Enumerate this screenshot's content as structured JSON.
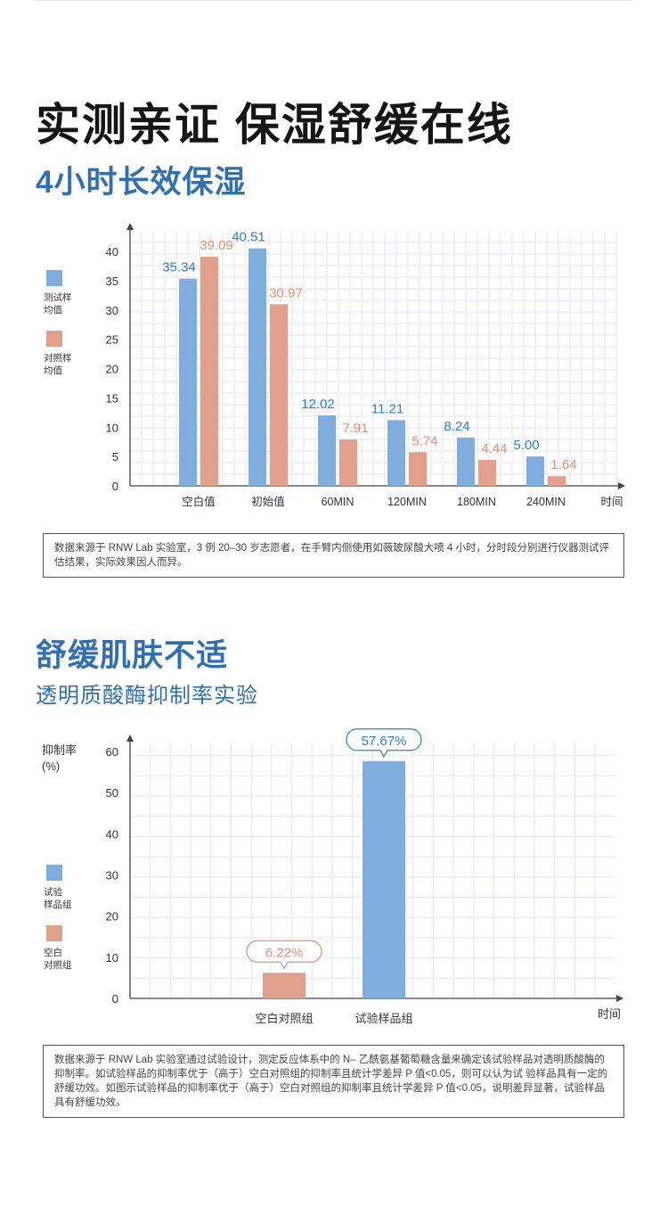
{
  "headline": "实测亲证 保湿舒缓在线",
  "section1": {
    "title": "4小时长效保湿",
    "note": "数据来源于 RNW Lab 实验室，3 例 20–30 岁志愿者，在手臂内侧使用如薇玻尿酸大喷 4 小时，分时段分别进行仪器测试评估结果，实际效果因人而异。"
  },
  "section2": {
    "title": "舒缓肌肤不适",
    "subtitle": "透明质酸酶抑制率实验",
    "note": "数据来源于 RNW Lab 实验室通过试验设计，测定反应体系中的 N– 乙酰氨基葡萄糖含量来确定该试验样品对透明质酸酶的抑制率。如试验样品的抑制率优于（高于）空白对照组的抑制率且统计学差异 P 值<0.05，则可以认为试 验样品具有一定的舒缓功效。如图示试验样品的抑制率优于（高于）空白对照组的抑制率且统计学差异 P 值<0.05，说明差异显著，试验样品具有舒缓功效。"
  },
  "colors": {
    "blue": "#7fadde",
    "salmon": "#e0a08c",
    "blue_text": "#2d7fd0",
    "salmon_text": "#e0927a",
    "grid": "#e3e6eb",
    "axis": "#444444"
  },
  "chart_data": [
    {
      "type": "bar",
      "categories": [
        "空白值",
        "初始值",
        "60MIN",
        "120MIN",
        "180MIN",
        "240MIN"
      ],
      "series": [
        {
          "name": "测试样\n均值",
          "values": [
            35.34,
            40.51,
            12.02,
            11.21,
            8.24,
            5.0
          ],
          "labels": [
            "35.34",
            "40.51",
            "12.02",
            "11.21",
            "8.24",
            "5.00"
          ],
          "color": "#7fadde"
        },
        {
          "name": "对照样\n均值",
          "values": [
            39.09,
            30.97,
            7.91,
            5.74,
            4.44,
            1.64
          ],
          "labels": [
            "39.09",
            "30.97",
            "7.91",
            "5.74",
            "4.44",
            "1.64"
          ],
          "color": "#e0a08c"
        }
      ],
      "yticks": [
        0,
        5,
        10,
        15,
        20,
        25,
        30,
        35,
        40
      ],
      "ylim": [
        0,
        45
      ],
      "xlabel": "时间",
      "ylabel": "",
      "grid": true,
      "legend": "left"
    },
    {
      "type": "bar",
      "categories": [
        "空白对照组",
        "试验样品组"
      ],
      "values": [
        6.22,
        57.67
      ],
      "labels": [
        "6.22%",
        "57.67%"
      ],
      "colors": [
        "#e0a08c",
        "#7fadde"
      ],
      "legend_entries": [
        {
          "name": "试验\n样品组",
          "color": "#7fadde"
        },
        {
          "name": "空白\n对照组",
          "color": "#e0a08c"
        }
      ],
      "yticks": [
        0,
        10,
        20,
        30,
        40,
        50,
        60
      ],
      "ylim": [
        0,
        65
      ],
      "xlabel": "时间",
      "ylabel": "抑制率\n(%)",
      "grid": true,
      "legend": "left"
    }
  ]
}
